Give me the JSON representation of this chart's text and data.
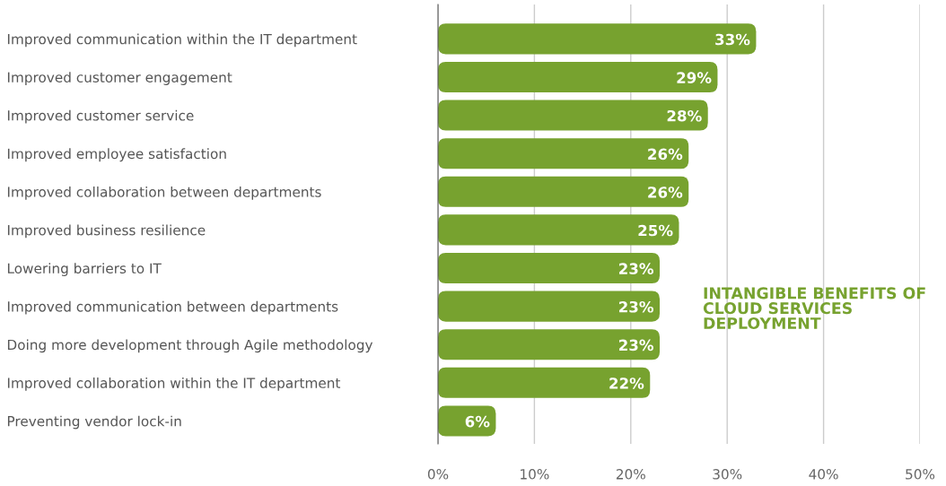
{
  "chart_data": {
    "type": "bar",
    "orientation": "horizontal",
    "title": "INTANGIBLE BENEFITS OF CLOUD SERVICES DEPLOYMENT",
    "categories": [
      "Improved communication within the IT department",
      "Improved customer engagement",
      "Improved customer service",
      "Improved employee satisfaction",
      "Improved collaboration between departments",
      "Improved business resilience",
      "Lowering barriers to IT",
      "Improved communication between departments",
      "Doing more development through Agile methodology",
      "Improved collaboration within the IT department",
      "Preventing vendor lock-in"
    ],
    "values": [
      33,
      29,
      28,
      26,
      26,
      25,
      23,
      23,
      23,
      22,
      6
    ],
    "value_labels": [
      "33%",
      "29%",
      "28%",
      "26%",
      "26%",
      "25%",
      "23%",
      "23%",
      "23%",
      "22%",
      "6%"
    ],
    "color": "#77a22f",
    "xlim": [
      0,
      50
    ],
    "xticks": [
      {
        "value": 0,
        "label": "0%"
      },
      {
        "value": 10,
        "label": "10%"
      },
      {
        "value": 20,
        "label": "20%"
      },
      {
        "value": 30,
        "label": "30%"
      },
      {
        "value": 40,
        "label": "40%"
      },
      {
        "value": 50,
        "label": "50%"
      }
    ],
    "grid": "x"
  }
}
